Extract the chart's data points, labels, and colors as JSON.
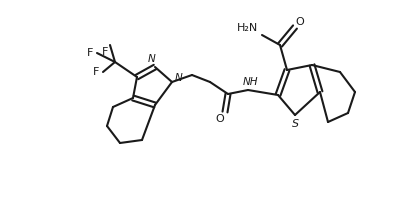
{
  "bg_color": "#ffffff",
  "line_color": "#1a1a1a",
  "lw": 1.5,
  "atoms": {
    "N_label": "N",
    "N2_label": "N",
    "S_label": "S",
    "H_label": "H",
    "O_label": "O",
    "F_labels": [
      "F",
      "F",
      "F"
    ],
    "NH2_label": "H₂N",
    "amide_O": "O"
  }
}
